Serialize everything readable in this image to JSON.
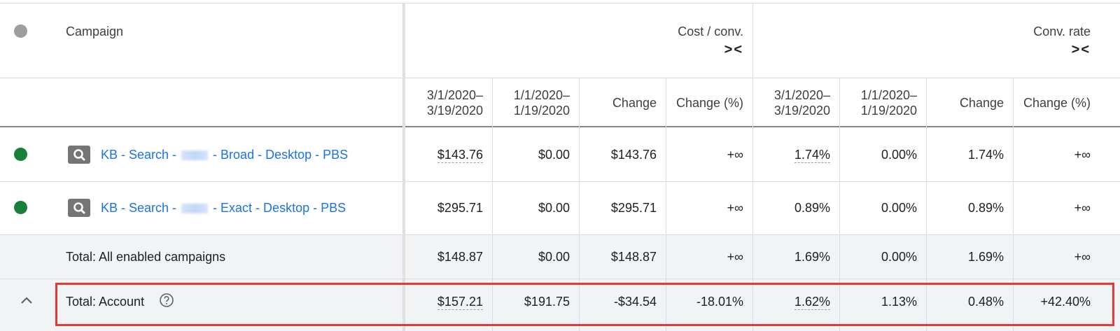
{
  "header": {
    "campaign_label": "Campaign",
    "groups": [
      {
        "label": "Cost / conv.",
        "toggle": "><"
      },
      {
        "label": "Conv. rate",
        "toggle": "><"
      }
    ],
    "subcolumns": [
      {
        "line1": "3/1/2020–",
        "line2": "3/19/2020"
      },
      {
        "line1": "1/1/2020–",
        "line2": "1/19/2020"
      },
      {
        "line1": "Change",
        "line2": ""
      },
      {
        "line1": "Change (%)",
        "line2": ""
      },
      {
        "line1": "3/1/2020–",
        "line2": "3/19/2020"
      },
      {
        "line1": "1/1/2020–",
        "line2": "1/19/2020"
      },
      {
        "line1": "Change",
        "line2": ""
      },
      {
        "line1": "Change (%)",
        "line2": ""
      }
    ]
  },
  "rows": [
    {
      "name_prefix": "KB - Search - ",
      "name_suffix": " - Broad - Desktop - PBS",
      "cells": [
        "$143.76",
        "$0.00",
        "$143.76",
        "+∞",
        "1.74%",
        "0.00%",
        "1.74%",
        "+∞"
      ]
    },
    {
      "name_prefix": "KB - Search - ",
      "name_suffix": " - Exact - Desktop - PBS",
      "cells": [
        "$295.71",
        "$0.00",
        "$295.71",
        "+∞",
        "0.89%",
        "0.00%",
        "0.89%",
        "+∞"
      ]
    }
  ],
  "totals": [
    {
      "label": "Total: All enabled campaigns",
      "cells": [
        "$148.87",
        "$0.00",
        "$148.87",
        "+∞",
        "1.69%",
        "0.00%",
        "1.69%",
        "+∞"
      ]
    },
    {
      "label": "Total: Account",
      "cells": [
        "$157.21",
        "$191.75",
        "-$34.54",
        "-18.01%",
        "1.62%",
        "1.13%",
        "0.48%",
        "+42.40%"
      ]
    }
  ],
  "colors": {
    "enabled_dot": "#188038",
    "header_dot": "#9e9e9e",
    "link": "#1a73e8",
    "highlight": "#e53935"
  },
  "icons": {
    "header_status": "status-dot-icon",
    "search_campaign": "search-icon",
    "help": "help-icon",
    "collapse": "chevron-up-icon"
  }
}
